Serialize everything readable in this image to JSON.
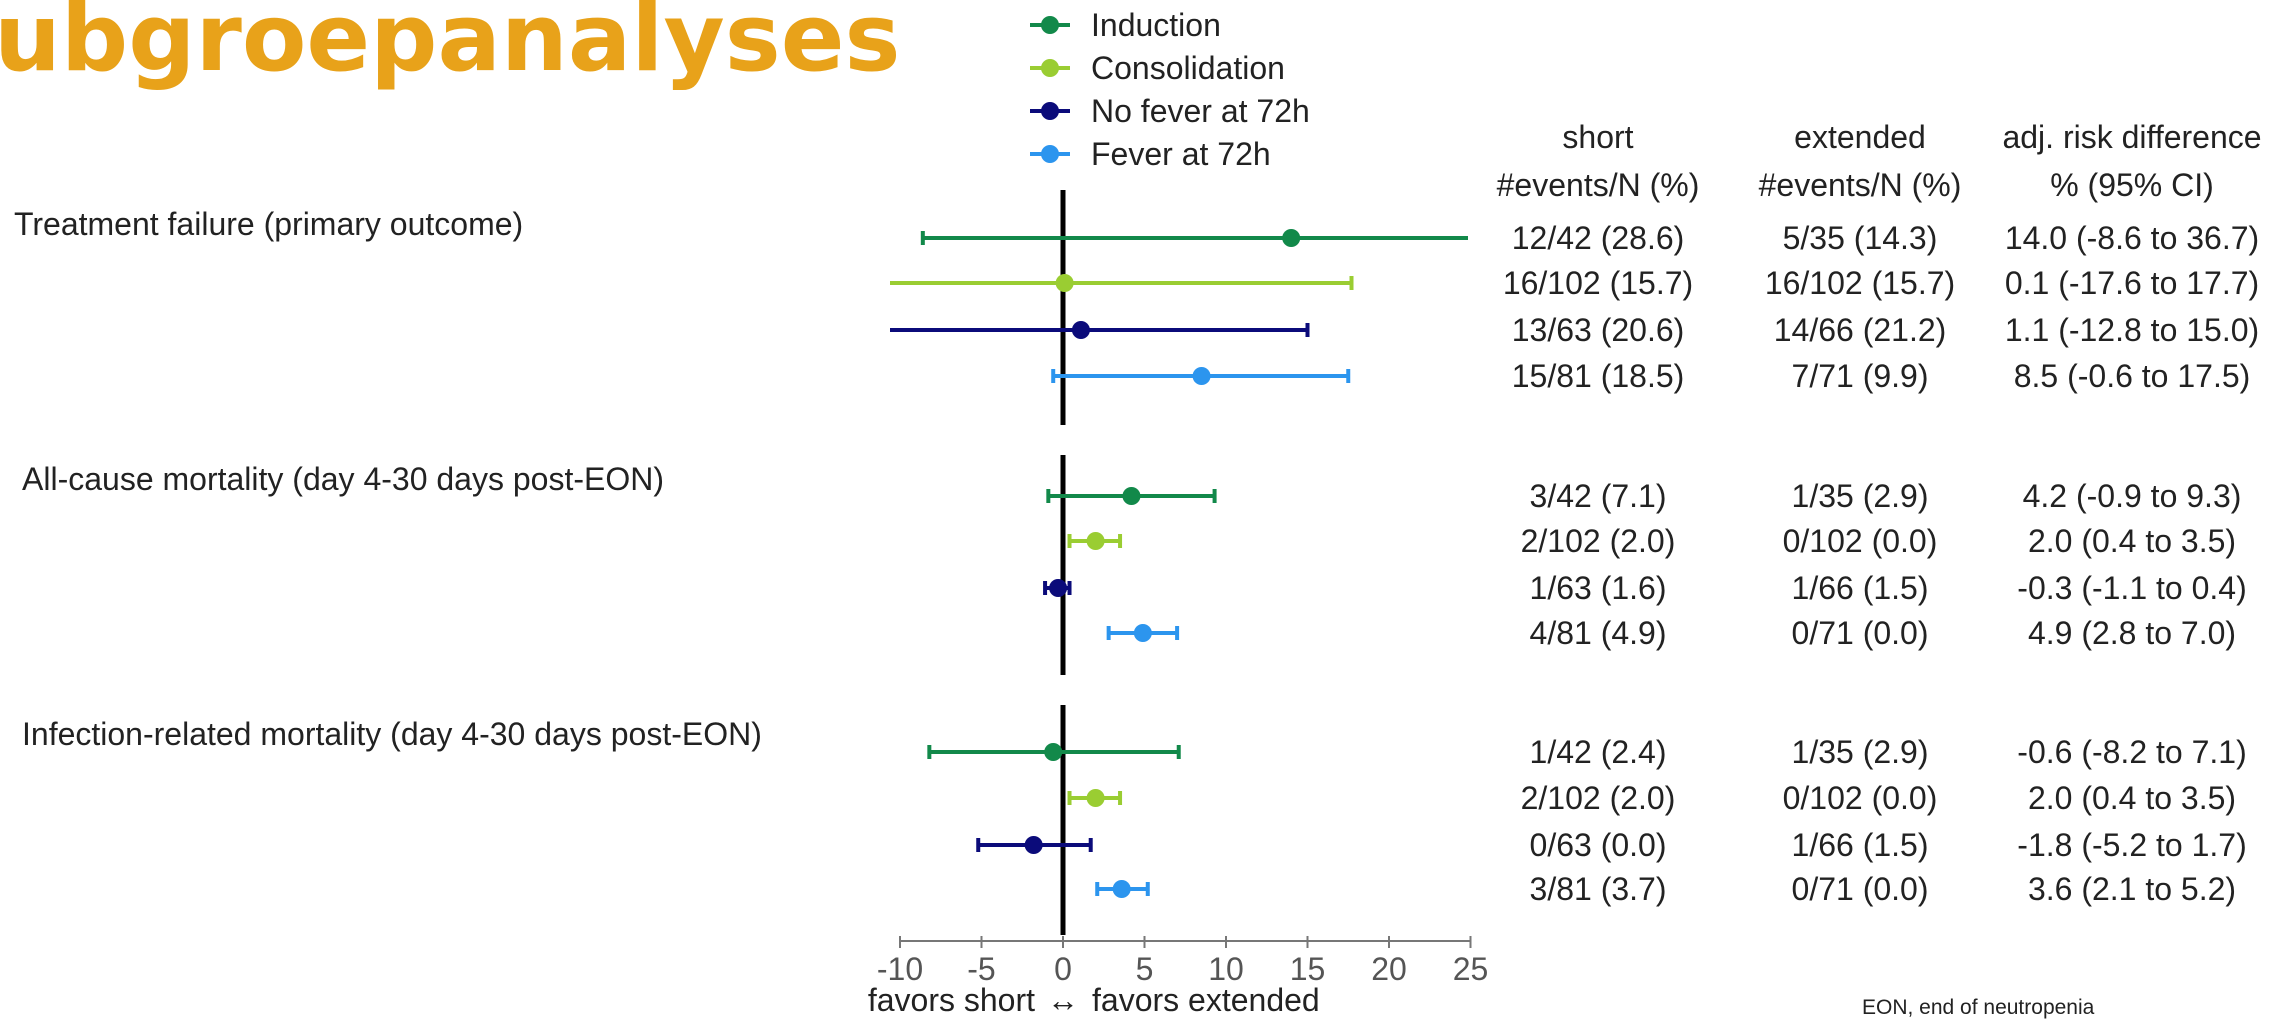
{
  "slide": {
    "title": "ubgroepanalyses",
    "footnote": "EON, end of neutropenia"
  },
  "colors": {
    "title": "#E8A21A",
    "induction": "#12894A",
    "consolidation": "#9ACD32",
    "no_fever": "#0B0B7A",
    "fever": "#2C95EE",
    "zero_line": "#000000"
  },
  "legend": [
    {
      "name": "Induction",
      "color": "#12894A"
    },
    {
      "name": "Consolidation",
      "color": "#9ACD32"
    },
    {
      "name": "No fever at 72h",
      "color": "#0B0B7A"
    },
    {
      "name": "Fever at 72h",
      "color": "#2C95EE"
    }
  ],
  "table": {
    "headers": [
      {
        "line1": "short",
        "line2": "#events/N (%)"
      },
      {
        "line1": "extended",
        "line2": "#events/N (%)"
      },
      {
        "line1": "adj. risk difference",
        "line2": "% (95% CI)"
      }
    ]
  },
  "axis": {
    "ticks": [
      "-10",
      "-5",
      "0",
      "5",
      "10",
      "15",
      "20",
      "25"
    ],
    "label_left": "favors  short",
    "arrow": "↔",
    "label_right": "favors  extended"
  },
  "chart_data": {
    "type": "forest",
    "xlim": [
      -10,
      25
    ],
    "xticks": [
      -10,
      -5,
      0,
      5,
      10,
      15,
      20,
      25
    ],
    "reference_line": 0,
    "grid": false,
    "legend_position": "top",
    "groups": [
      {
        "outcome": "Treatment failure (primary outcome)",
        "rows": [
          {
            "subgroup": "Induction",
            "estimate": 14.0,
            "ci": [
              -8.6,
              36.7
            ],
            "short": "12/42 (28.6)",
            "extended": "5/35 (14.3)",
            "rd": "14.0 (-8.6 to 36.7)"
          },
          {
            "subgroup": "Consolidation",
            "estimate": 0.1,
            "ci": [
              -17.6,
              17.7
            ],
            "short": "16/102 (15.7)",
            "extended": "16/102 (15.7)",
            "rd": "0.1 (-17.6 to 17.7)"
          },
          {
            "subgroup": "No fever at 72h",
            "estimate": 1.1,
            "ci": [
              -12.8,
              15.0
            ],
            "short": "13/63 (20.6)",
            "extended": "14/66 (21.2)",
            "rd": "1.1 (-12.8 to 15.0)"
          },
          {
            "subgroup": "Fever at 72h",
            "estimate": 8.5,
            "ci": [
              -0.6,
              17.5
            ],
            "short": "15/81 (18.5)",
            "extended": "7/71 (9.9)",
            "rd": "8.5 (-0.6 to 17.5)"
          }
        ]
      },
      {
        "outcome": "All-cause mortality (day 4-30 days post-EON)",
        "rows": [
          {
            "subgroup": "Induction",
            "estimate": 4.2,
            "ci": [
              -0.9,
              9.3
            ],
            "short": "3/42 (7.1)",
            "extended": "1/35 (2.9)",
            "rd": "4.2 (-0.9 to 9.3)"
          },
          {
            "subgroup": "Consolidation",
            "estimate": 2.0,
            "ci": [
              0.4,
              3.5
            ],
            "short": "2/102 (2.0)",
            "extended": "0/102 (0.0)",
            "rd": "2.0 (0.4 to 3.5)"
          },
          {
            "subgroup": "No fever at 72h",
            "estimate": -0.3,
            "ci": [
              -1.1,
              0.4
            ],
            "short": "1/63 (1.6)",
            "extended": "1/66 (1.5)",
            "rd": "-0.3 (-1.1 to 0.4)"
          },
          {
            "subgroup": "Fever at 72h",
            "estimate": 4.9,
            "ci": [
              2.8,
              7.0
            ],
            "short": "4/81 (4.9)",
            "extended": "0/71 (0.0)",
            "rd": "4.9 (2.8 to 7.0)"
          }
        ]
      },
      {
        "outcome": "Infection-related mortality (day 4-30 days post-EON)",
        "rows": [
          {
            "subgroup": "Induction",
            "estimate": -0.6,
            "ci": [
              -8.2,
              7.1
            ],
            "short": "1/42 (2.4)",
            "extended": "1/35 (2.9)",
            "rd": "-0.6 (-8.2 to 7.1)"
          },
          {
            "subgroup": "Consolidation",
            "estimate": 2.0,
            "ci": [
              0.4,
              3.5
            ],
            "short": "2/102 (2.0)",
            "extended": "0/102 (0.0)",
            "rd": "2.0 (0.4 to 3.5)"
          },
          {
            "subgroup": "No fever at 72h",
            "estimate": -1.8,
            "ci": [
              -5.2,
              1.7
            ],
            "short": "0/63 (0.0)",
            "extended": "1/66 (1.5)",
            "rd": "-1.8 (-5.2 to 1.7)"
          },
          {
            "subgroup": "Fever at 72h",
            "estimate": 3.6,
            "ci": [
              2.1,
              5.2
            ],
            "short": "3/81 (3.7)",
            "extended": "0/71 (0.0)",
            "rd": "3.6 (2.1 to 5.2)"
          }
        ]
      }
    ]
  }
}
